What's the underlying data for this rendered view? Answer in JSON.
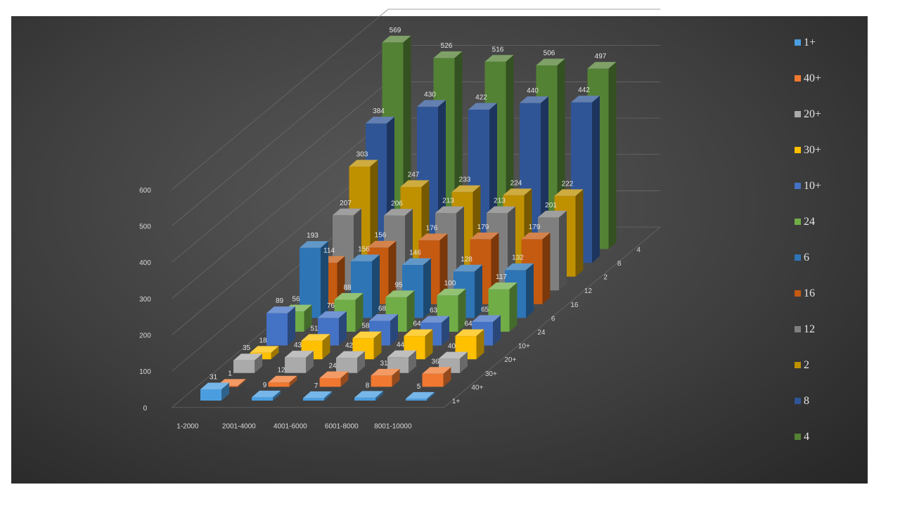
{
  "chart_data": {
    "type": "bar",
    "categories": [
      "1-2000",
      "2001-4000",
      "4001-6000",
      "6001-8000",
      "8001-10000"
    ],
    "series": [
      {
        "name": "1+",
        "color": "#4a9ee0",
        "values": [
          31,
          9,
          7,
          8,
          5
        ]
      },
      {
        "name": "40+",
        "color": "#f07830",
        "values": [
          1,
          12,
          24,
          31,
          36
        ]
      },
      {
        "name": "20+",
        "color": "#aaaaaa",
        "values": [
          35,
          43,
          42,
          44,
          40
        ]
      },
      {
        "name": "30+",
        "color": "#ffc000",
        "values": [
          18,
          51,
          58,
          64,
          64
        ]
      },
      {
        "name": "10+",
        "color": "#4472c4",
        "values": [
          89,
          76,
          68,
          63,
          65
        ]
      },
      {
        "name": "24",
        "color": "#70ad47",
        "values": [
          56,
          88,
          95,
          100,
          117
        ]
      },
      {
        "name": "6",
        "color": "#2e75b6",
        "values": [
          193,
          156,
          146,
          128,
          132
        ]
      },
      {
        "name": "16",
        "color": "#c55a11",
        "values": [
          114,
          156,
          176,
          179,
          179
        ]
      },
      {
        "name": "12",
        "color": "#7f7f7f",
        "values": [
          207,
          206,
          213,
          213,
          201
        ]
      },
      {
        "name": "2",
        "color": "#bf9000",
        "values": [
          303,
          247,
          233,
          224,
          222
        ]
      },
      {
        "name": "8",
        "color": "#2f5597",
        "values": [
          384,
          430,
          422,
          440,
          442
        ]
      },
      {
        "name": "4",
        "color": "#548235",
        "values": [
          569,
          526,
          516,
          506,
          497
        ]
      }
    ],
    "depth_axis_labels": [
      "1+",
      "40+",
      "30+",
      "20+",
      "10+",
      "24",
      "6",
      "16",
      "12",
      "2",
      "8",
      "4"
    ],
    "y_ticks": [
      "0",
      "100",
      "200",
      "300",
      "400",
      "500",
      "600"
    ],
    "ylim": [
      0,
      600
    ],
    "title": "",
    "xlabel": "",
    "ylabel": "",
    "grid": true,
    "legend_position": "right",
    "background_color": "#404040"
  }
}
